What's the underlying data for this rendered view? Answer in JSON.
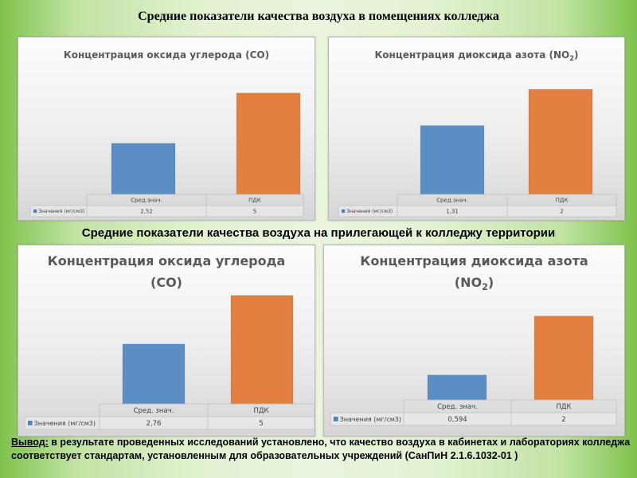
{
  "page": {
    "heading_indoor": "Средние показатели качества воздуха в помещениях колледжа",
    "heading_outdoor": "Средние показатели качества воздуха на прилегающей к колледжу территории"
  },
  "conclusion": {
    "lead": "Вывод:",
    "text": " в результате проведенных исследований установлено, что качество воздуха в кабинетах и лабораториях колледжа соответствует стандартам, установленным для образовательных учреждений (СанПиН 2.1.6.1032-01 )"
  },
  "colors": {
    "blue_bar": "#5b8ec4",
    "orange_bar": "#e37f3f",
    "legend_key": "#4a7ebb"
  },
  "chart_data": [
    {
      "type": "bar",
      "title_lines": [
        "Концентрация оксида углерода (CO)"
      ],
      "categories": [
        "Сред.знач.",
        "ПДК"
      ],
      "series": [
        {
          "name": "Значения (мг/см3)",
          "values": [
            2.52,
            5
          ]
        }
      ],
      "value_labels": [
        "2,52",
        "5"
      ],
      "ylim": [
        0,
        5.7
      ],
      "legend": "data-table",
      "grid": false
    },
    {
      "type": "bar",
      "title_lines": [
        "Концентрация диоксида азота (NO",
        "2",
        ")"
      ],
      "categories": [
        "Сред.знач.",
        "ПДК"
      ],
      "series": [
        {
          "name": "Значения (мг/см3)",
          "values": [
            1.31,
            2
          ]
        }
      ],
      "value_labels": [
        "1,31",
        "2"
      ],
      "ylim": [
        0,
        2.2
      ],
      "legend": "data-table",
      "grid": false
    },
    {
      "type": "bar",
      "title_lines": [
        "Концентрация оксида углерода",
        "(CO)"
      ],
      "categories": [
        "Сред. знач.",
        "ПДК"
      ],
      "series": [
        {
          "name": "Значения (мг/см3)",
          "values": [
            2.76,
            5
          ]
        }
      ],
      "value_labels": [
        "2,76",
        "5"
      ],
      "ylim": [
        0,
        5.4
      ],
      "legend": "data-table",
      "grid": false
    },
    {
      "type": "bar",
      "title_lines": [
        "Концентрация диоксида азота",
        "(NO",
        "2",
        ")"
      ],
      "categories": [
        "Сред. знач.",
        "ПДК"
      ],
      "series": [
        {
          "name": "Значения (мг/см3)",
          "values": [
            0.594,
            2
          ]
        }
      ],
      "value_labels": [
        "0,594",
        "2"
      ],
      "ylim": [
        0,
        2.7
      ],
      "legend": "data-table",
      "grid": false
    }
  ]
}
